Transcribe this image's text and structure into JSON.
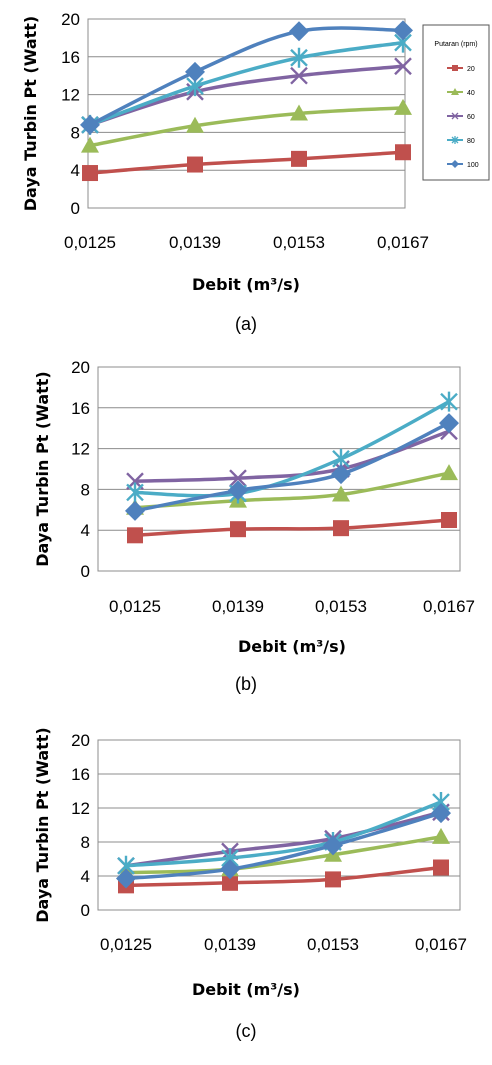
{
  "chart_data": [
    {
      "type": "line",
      "caption": "(a)",
      "xlabel": "Debit (m³/s)",
      "ylabel": "Daya Turbin Pt (Watt)",
      "categories": [
        "0,0125",
        "0,0139",
        "0,0153",
        "0,0167"
      ],
      "y_ticks": [
        "0",
        "4",
        "8",
        "12",
        "16",
        "20"
      ],
      "ylim": [
        0,
        20
      ],
      "grid": true,
      "legend": {
        "placement": "right",
        "title": "Putaran (rpm)",
        "entries": [
          "20",
          "40",
          "60",
          "80",
          "100"
        ]
      },
      "series": [
        {
          "name": "20",
          "color": "#c0504d",
          "marker": "square",
          "values": [
            3.7,
            4.6,
            5.2,
            5.9
          ]
        },
        {
          "name": "40",
          "color": "#9bbb59",
          "marker": "triangle",
          "values": [
            6.6,
            8.7,
            10.0,
            10.6
          ]
        },
        {
          "name": "60",
          "color": "#8064a2",
          "marker": "x",
          "values": [
            8.8,
            12.3,
            14.0,
            15.0
          ]
        },
        {
          "name": "80",
          "color": "#4bacc6",
          "marker": "star",
          "values": [
            8.8,
            12.9,
            15.9,
            17.5
          ]
        },
        {
          "name": "100",
          "color": "#4f81bd",
          "marker": "diamond",
          "values": [
            8.8,
            14.4,
            18.7,
            18.8
          ]
        }
      ]
    },
    {
      "type": "line",
      "caption": "(b)",
      "xlabel": "Debit (m³/s)",
      "ylabel": "Daya Turbin Pt (Watt)",
      "categories": [
        "0,0125",
        "0,0139",
        "0,0153",
        "0,0167"
      ],
      "y_ticks": [
        "0",
        "4",
        "8",
        "12",
        "16",
        "20"
      ],
      "ylim": [
        0,
        20
      ],
      "grid": true,
      "series": [
        {
          "name": "20",
          "color": "#c0504d",
          "marker": "square",
          "values": [
            3.5,
            4.1,
            4.2,
            5.0
          ]
        },
        {
          "name": "40",
          "color": "#9bbb59",
          "marker": "triangle",
          "values": [
            6.2,
            6.9,
            7.5,
            9.6
          ]
        },
        {
          "name": "60",
          "color": "#8064a2",
          "marker": "x",
          "values": [
            8.8,
            9.1,
            10.0,
            13.7
          ]
        },
        {
          "name": "80",
          "color": "#4bacc6",
          "marker": "star",
          "values": [
            7.7,
            7.6,
            11.0,
            16.6
          ]
        },
        {
          "name": "100",
          "color": "#4f81bd",
          "marker": "diamond",
          "values": [
            5.9,
            7.9,
            9.5,
            14.5
          ]
        }
      ]
    },
    {
      "type": "line",
      "caption": "(c)",
      "xlabel": "Debit (m³/s)",
      "ylabel": "Daya Turbin Pt (Watt)",
      "categories": [
        "0,0125",
        "0,0139",
        "0,0153",
        "0,0167"
      ],
      "y_ticks": [
        "0",
        "4",
        "8",
        "12",
        "16",
        "20"
      ],
      "ylim": [
        0,
        20
      ],
      "grid": true,
      "series": [
        {
          "name": "20",
          "color": "#c0504d",
          "marker": "square",
          "values": [
            2.9,
            3.2,
            3.6,
            5.0
          ]
        },
        {
          "name": "40",
          "color": "#9bbb59",
          "marker": "triangle",
          "values": [
            4.4,
            4.8,
            6.5,
            8.6
          ]
        },
        {
          "name": "60",
          "color": "#8064a2",
          "marker": "x",
          "values": [
            5.2,
            6.9,
            8.4,
            11.5
          ]
        },
        {
          "name": "80",
          "color": "#4bacc6",
          "marker": "star",
          "values": [
            5.2,
            6.1,
            8.0,
            12.7
          ]
        },
        {
          "name": "100",
          "color": "#4f81bd",
          "marker": "diamond",
          "values": [
            3.7,
            4.8,
            7.6,
            11.4
          ]
        }
      ]
    }
  ]
}
